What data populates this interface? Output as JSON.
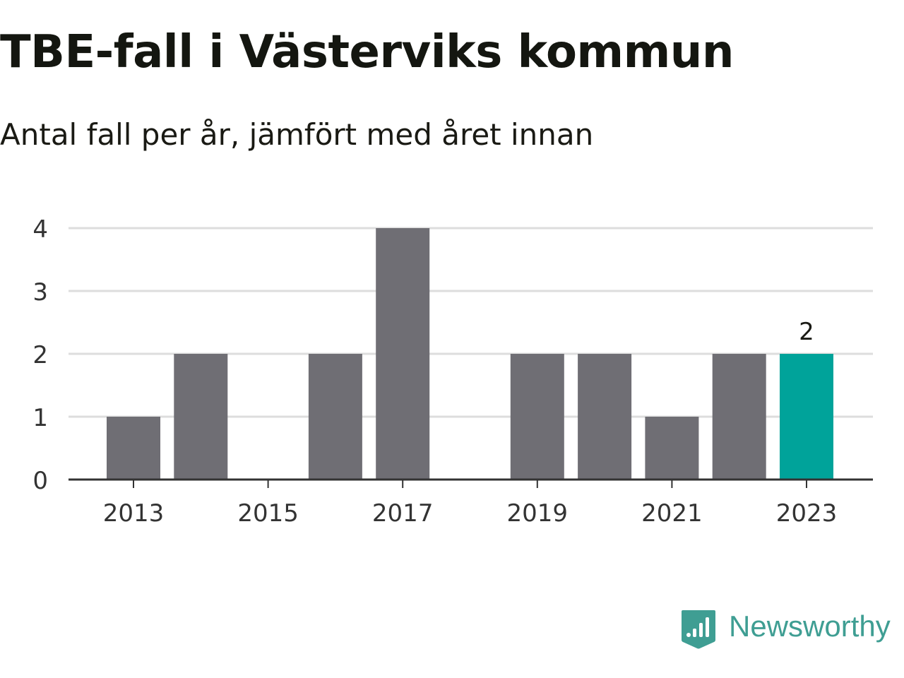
{
  "title": "TBE-fall i Västerviks kommun",
  "subtitle": "Antal fall per år, jämfört med året innan",
  "brand": {
    "name": "Newsworthy",
    "icon": "newsworthy-logo-icon",
    "color": "#3f9e93"
  },
  "colors": {
    "bar": "#6f6e74",
    "highlight": "#00a39a",
    "grid": "#dddddd",
    "axis": "#333333"
  },
  "chart_data": {
    "type": "bar",
    "title": "TBE-fall i Västerviks kommun",
    "subtitle": "Antal fall per år, jämfört med året innan",
    "xlabel": "",
    "ylabel": "",
    "x": [
      2013,
      2014,
      2015,
      2016,
      2017,
      2018,
      2019,
      2020,
      2021,
      2022,
      2023
    ],
    "values": [
      1,
      2,
      0,
      2,
      4,
      0,
      2,
      2,
      1,
      2,
      2
    ],
    "xtick_labels": [
      "2013",
      "2015",
      "2017",
      "2019",
      "2021",
      "2023"
    ],
    "yticks": [
      "0",
      "1",
      "2",
      "3",
      "4"
    ],
    "ylim": [
      0,
      4
    ],
    "highlight_category": 2023,
    "data_labels": [
      {
        "x": 2023,
        "label": "2"
      }
    ],
    "grid": true,
    "legend": "none"
  }
}
